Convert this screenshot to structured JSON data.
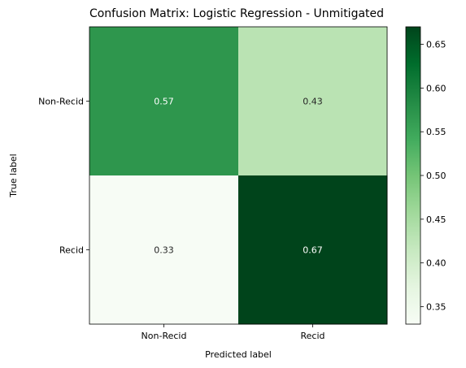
{
  "chart_data": {
    "type": "heatmap",
    "title": "Confusion Matrix: Logistic Regression -  Unmitigated",
    "xlabel": "Predicted label",
    "ylabel": "True label",
    "x_categories": [
      "Non-Recid",
      "Recid"
    ],
    "y_categories": [
      "Non-Recid",
      "Recid"
    ],
    "values": [
      [
        0.57,
        0.43
      ],
      [
        0.33,
        0.67
      ]
    ],
    "cell_labels": [
      [
        "0.57",
        "0.43"
      ],
      [
        "0.33",
        "0.67"
      ]
    ],
    "colormap": "Greens",
    "colorbar": {
      "range": [
        0.33,
        0.67
      ],
      "ticks": [
        0.35,
        0.4,
        0.45,
        0.5,
        0.55,
        0.6,
        0.65
      ],
      "tick_labels": [
        "0.35",
        "0.40",
        "0.45",
        "0.50",
        "0.55",
        "0.60",
        "0.65"
      ]
    },
    "grid": false
  }
}
